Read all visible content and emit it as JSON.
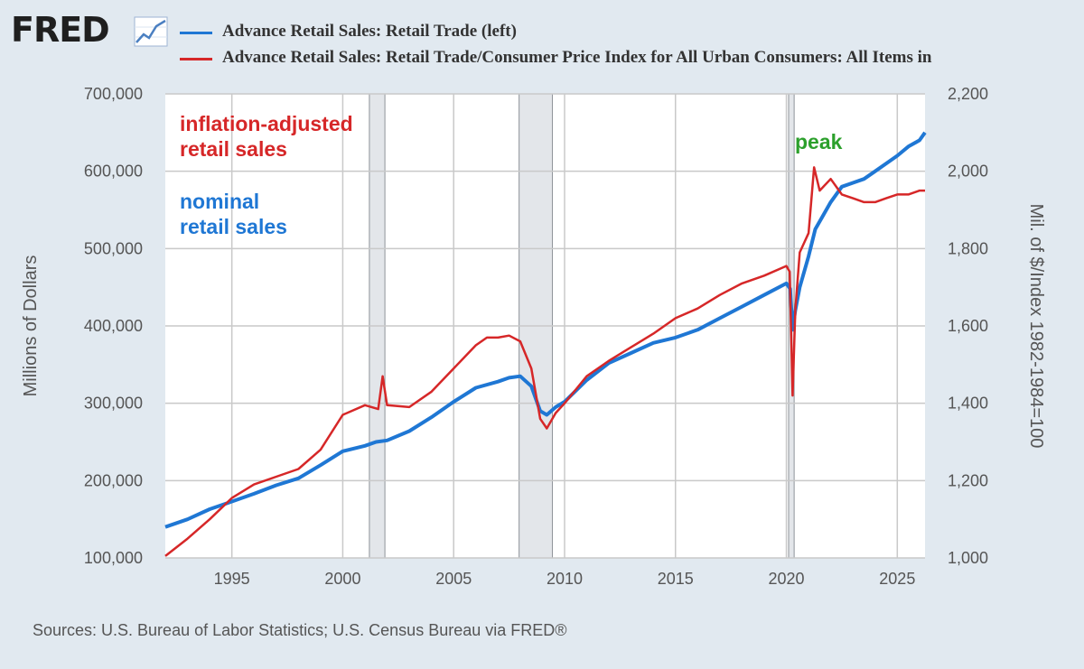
{
  "header": {
    "logo_text": "FRED",
    "logo_icon": "line-chart-icon"
  },
  "legend": [
    {
      "label": "Advance Retail Sales: Retail Trade (left)",
      "color": "#1f77d4"
    },
    {
      "label": "Advance Retail Sales: Retail Trade/Consumer Price Index for All Urban Consumers: All Items in",
      "color": "#d62728"
    }
  ],
  "source": "Sources: U.S. Bureau of Labor Statistics; U.S. Census Bureau via FRED®",
  "chart_data": {
    "type": "line",
    "ylabel_left": "Millions of Dollars",
    "ylabel_right": "Mil. of $/Index 1982-1984=100",
    "xlim": [
      1992.0,
      2026.25
    ],
    "ylim_left": [
      100000,
      700000
    ],
    "ylim_right": [
      1000,
      2200
    ],
    "x_ticks": [
      1995,
      2000,
      2005,
      2010,
      2015,
      2020,
      2025
    ],
    "y_ticks_left": [
      "100,000",
      "200,000",
      "300,000",
      "400,000",
      "500,000",
      "600,000",
      "700,000"
    ],
    "y_ticks_right": [
      "1,000",
      "1,200",
      "1,400",
      "1,600",
      "1,800",
      "2,000",
      "2,200"
    ],
    "grid": true,
    "recessions": [
      [
        2001.2,
        2001.9
      ],
      [
        2007.95,
        2009.45
      ],
      [
        2020.1,
        2020.35
      ]
    ],
    "annotations": [
      {
        "text": "inflation-adjusted\nretail sales",
        "color": "#d62728"
      },
      {
        "text": "nominal\nretail sales",
        "color": "#1f77d4"
      },
      {
        "text": "peak",
        "color": "#2ca02c"
      }
    ],
    "series": [
      {
        "name": "Advance Retail Sales: Retail Trade (left)",
        "color": "#1f77d4",
        "axis": "left",
        "x": [
          1992.0,
          1993.0,
          1994.0,
          1995.0,
          1996.0,
          1997.0,
          1998.0,
          1999.0,
          2000.0,
          2001.0,
          2001.5,
          2002.0,
          2003.0,
          2004.0,
          2005.0,
          2006.0,
          2007.0,
          2007.5,
          2008.0,
          2008.5,
          2008.9,
          2009.2,
          2009.6,
          2010.0,
          2011.0,
          2012.0,
          2013.0,
          2014.0,
          2015.0,
          2016.0,
          2017.0,
          2018.0,
          2019.0,
          2020.0,
          2020.17,
          2020.28,
          2020.4,
          2020.6,
          2021.0,
          2021.3,
          2021.6,
          2022.0,
          2022.5,
          2023.0,
          2023.5,
          2024.0,
          2024.5,
          2025.0,
          2025.5,
          2026.0,
          2026.25
        ],
        "values": [
          140000,
          150000,
          163000,
          173000,
          183000,
          194000,
          203000,
          220000,
          238000,
          245000,
          250000,
          252000,
          264000,
          282000,
          302000,
          320000,
          328000,
          333000,
          335000,
          322000,
          290000,
          285000,
          295000,
          302000,
          330000,
          352000,
          365000,
          378000,
          385000,
          395000,
          410000,
          425000,
          440000,
          455000,
          448000,
          395000,
          420000,
          450000,
          490000,
          525000,
          540000,
          560000,
          580000,
          585000,
          590000,
          600000,
          610000,
          620000,
          632000,
          640000,
          650000
        ]
      },
      {
        "name": "Advance Retail Sales: Retail Trade/Consumer Price Index for All Urban Consumers: All Items in",
        "color": "#d62728",
        "axis": "right",
        "x": [
          1992.0,
          1993.0,
          1994.0,
          1995.0,
          1996.0,
          1997.0,
          1998.0,
          1999.0,
          2000.0,
          2001.0,
          2001.6,
          2001.8,
          2002.0,
          2003.0,
          2004.0,
          2005.0,
          2006.0,
          2006.5,
          2007.0,
          2007.5,
          2008.0,
          2008.5,
          2008.9,
          2009.2,
          2009.6,
          2010.0,
          2011.0,
          2012.0,
          2013.0,
          2014.0,
          2015.0,
          2016.0,
          2017.0,
          2018.0,
          2019.0,
          2020.0,
          2020.15,
          2020.28,
          2020.4,
          2020.6,
          2021.0,
          2021.25,
          2021.5,
          2022.0,
          2022.5,
          2023.0,
          2023.5,
          2024.0,
          2024.5,
          2025.0,
          2025.5,
          2026.0,
          2026.25
        ],
        "values": [
          1005,
          1050,
          1100,
          1155,
          1190,
          1210,
          1230,
          1280,
          1370,
          1395,
          1385,
          1470,
          1395,
          1390,
          1430,
          1490,
          1550,
          1570,
          1570,
          1575,
          1560,
          1490,
          1360,
          1335,
          1375,
          1400,
          1470,
          1510,
          1545,
          1580,
          1620,
          1645,
          1680,
          1710,
          1730,
          1755,
          1740,
          1420,
          1640,
          1790,
          1840,
          2010,
          1950,
          1980,
          1940,
          1930,
          1920,
          1920,
          1930,
          1940,
          1940,
          1950,
          1950
        ]
      }
    ]
  }
}
